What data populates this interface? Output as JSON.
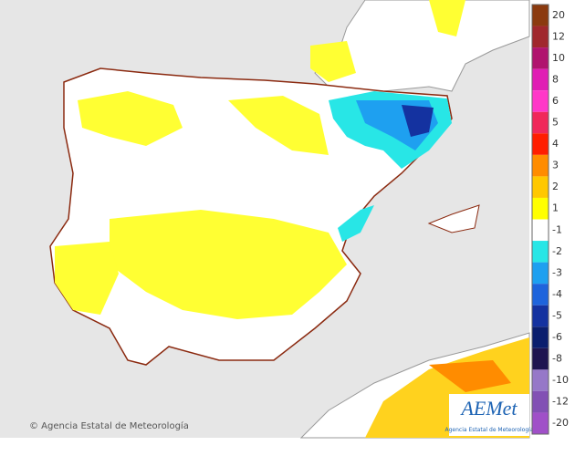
{
  "legend": {
    "items": [
      {
        "label": "20",
        "color": "#8b3a0f"
      },
      {
        "label": "12",
        "color": "#a0282d"
      },
      {
        "label": "10",
        "color": "#b0146e"
      },
      {
        "label": "8",
        "color": "#e01eb4"
      },
      {
        "label": "6",
        "color": "#ff37c8"
      },
      {
        "label": "5",
        "color": "#f0285a"
      },
      {
        "label": "4",
        "color": "#ff1e00"
      },
      {
        "label": "3",
        "color": "#ff8c00"
      },
      {
        "label": "2",
        "color": "#ffc800"
      },
      {
        "label": "1",
        "color": "#ffff00"
      },
      {
        "label": "-1",
        "color": "#ffffff"
      },
      {
        "label": "-2",
        "color": "#28e6e6"
      },
      {
        "label": "-3",
        "color": "#1ea0f0"
      },
      {
        "label": "-4",
        "color": "#1e64dc"
      },
      {
        "label": "-5",
        "color": "#1432a0"
      },
      {
        "label": "-6",
        "color": "#0a1e6e"
      },
      {
        "label": "-8",
        "color": "#1e1450"
      },
      {
        "label": "-10",
        "color": "#9678c8"
      },
      {
        "label": "-12",
        "color": "#8250b4"
      },
      {
        "label": "-20",
        "color": "#a050c8"
      }
    ]
  },
  "footer": {
    "copyright": "© Agencia Estatal de Meteorología"
  },
  "logo": {
    "name": "AEMet",
    "subtitle": "Agencia Estatal de Meteorología"
  }
}
